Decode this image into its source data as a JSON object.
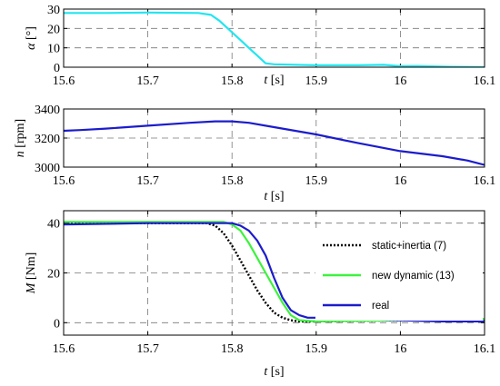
{
  "chart_data": [
    {
      "type": "line",
      "xlabel_var": "t",
      "xlabel_unit": " [s]",
      "ylabel_var": "α",
      "ylabel_unit": " [°]",
      "xlim": [
        15.6,
        16.1
      ],
      "ylim": [
        0,
        30
      ],
      "xticks": [
        "15.6",
        "15.7",
        "15.8",
        "15.9",
        "16",
        "16.1"
      ],
      "yticks": [
        "0",
        "10",
        "20",
        "30"
      ],
      "grid": true,
      "series": [
        {
          "color": "#22e5f0",
          "x": [
            15.6,
            15.65,
            15.7,
            15.76,
            15.775,
            15.785,
            15.8,
            15.81,
            15.82,
            15.83,
            15.84,
            15.85,
            15.9,
            15.95,
            15.98,
            16.0,
            16.02,
            16.06,
            16.1
          ],
          "y": [
            28,
            28,
            28.2,
            28,
            27,
            24,
            18,
            14,
            10,
            6,
            2,
            1.5,
            1,
            1,
            1.2,
            0.5,
            0.6,
            0.2,
            0
          ]
        }
      ]
    },
    {
      "type": "line",
      "xlabel_var": "t",
      "xlabel_unit": " [s]",
      "ylabel_var": "n",
      "ylabel_unit": " [rpm]",
      "xlim": [
        15.6,
        16.1
      ],
      "ylim": [
        3000,
        3400
      ],
      "xticks": [
        "15.6",
        "15.7",
        "15.8",
        "15.9",
        "16",
        "16.1"
      ],
      "yticks": [
        "3000",
        "3200",
        "3400"
      ],
      "grid": true,
      "series": [
        {
          "color": "#1c1ccc",
          "x": [
            15.6,
            15.62,
            15.65,
            15.7,
            15.75,
            15.78,
            15.8,
            15.82,
            15.85,
            15.9,
            15.95,
            16.0,
            16.05,
            16.08,
            16.1
          ],
          "y": [
            3250,
            3255,
            3265,
            3285,
            3305,
            3315,
            3315,
            3305,
            3275,
            3225,
            3165,
            3110,
            3075,
            3045,
            3015
          ]
        }
      ]
    },
    {
      "type": "line",
      "xlabel_var": "t",
      "xlabel_unit": " [s]",
      "ylabel_var": "M",
      "ylabel_unit": " [Nm]",
      "xlim": [
        15.6,
        16.1
      ],
      "ylim": [
        -5,
        45
      ],
      "xticks": [
        "15.6",
        "15.7",
        "15.8",
        "15.9",
        "16",
        "16.1"
      ],
      "yticks": [
        "0",
        "20",
        "40"
      ],
      "grid": true,
      "legend_position": "right",
      "series": [
        {
          "name": "static+inertia (7)",
          "color": "#000000",
          "dash": "2,2",
          "x": [
            15.6,
            15.7,
            15.77,
            15.78,
            15.79,
            15.8,
            15.81,
            15.82,
            15.83,
            15.84,
            15.85,
            15.86,
            15.87,
            15.88,
            15.9,
            16.0,
            16.1
          ],
          "y": [
            40,
            40,
            40,
            39,
            36,
            31,
            25,
            19,
            13,
            8,
            4,
            2,
            1,
            0.5,
            0.5,
            1,
            1
          ]
        },
        {
          "name": "new dynamic (13)",
          "color": "#3df23d",
          "dash": "",
          "x": [
            15.6,
            15.7,
            15.79,
            15.8,
            15.81,
            15.82,
            15.83,
            15.84,
            15.85,
            15.86,
            15.87,
            15.88,
            15.9,
            16.0,
            16.1
          ],
          "y": [
            40.5,
            40.5,
            40.5,
            39.5,
            37,
            32,
            26,
            20,
            14,
            8,
            3,
            1,
            0.5,
            1,
            1.5
          ]
        },
        {
          "name": "real",
          "color": "#1c1ccc",
          "dash": "",
          "x": [
            15.6,
            15.7,
            15.8,
            15.81,
            15.82,
            15.83,
            15.84,
            15.85,
            15.86,
            15.87,
            15.88,
            15.89,
            15.9,
            15.95,
            16.0,
            16.05,
            16.1
          ],
          "y": [
            39.5,
            40,
            40,
            39,
            37,
            33,
            27,
            18,
            10,
            5,
            3,
            2,
            2,
            1.5,
            1,
            0.5,
            0.5
          ]
        }
      ]
    }
  ]
}
